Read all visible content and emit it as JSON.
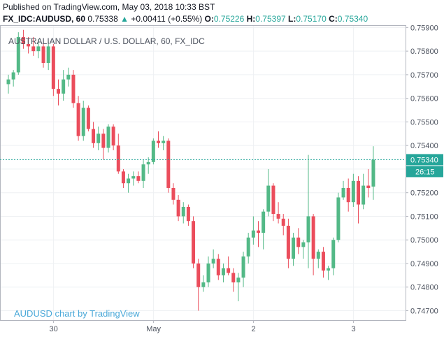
{
  "header": {
    "published": "Published on TradingView.com, May 03, 2018 10:33 BST",
    "symbol": "FX_IDC:AUDUSD, 60",
    "last": "0.75338",
    "change_arrow": "▲",
    "change": "+0.00411 (+0.55%)",
    "open_label": "O:",
    "open": "0.75226",
    "high_label": "H:",
    "high": "0.75397",
    "low_label": "L:",
    "low": "0.75170",
    "close_label": "C:",
    "close": "0.75340"
  },
  "caption": "AUSTRALIAN DOLLAR / U.S. DOLLAR, 60, FX_IDC",
  "watermark": "AUDUSD chart by TradingView",
  "price_tag": "0.75340",
  "countdown": "26:15",
  "colors": {
    "up": "#26a69a",
    "down": "#ef5350",
    "up_candle": "#53b987",
    "down_candle": "#eb4d5c",
    "last_line": "#26a69a"
  },
  "chart_data": {
    "type": "candlestick",
    "y_ticks": [
      "0.75900",
      "0.75800",
      "0.75700",
      "0.75600",
      "0.75500",
      "0.75400",
      "0.75300",
      "0.75200",
      "0.75100",
      "0.75000",
      "0.74900",
      "0.74800",
      "0.74700"
    ],
    "ylim": [
      0.7466,
      0.7591
    ],
    "x_tick_labels": [
      {
        "label": "30",
        "index": 4
      },
      {
        "label": "May",
        "index": 24
      },
      {
        "label": "2",
        "index": 44
      },
      {
        "label": "3",
        "index": 64
      }
    ],
    "last_price": 0.7534,
    "candles": [
      {
        "o": 0.7566,
        "h": 0.757,
        "l": 0.7562,
        "c": 0.7568
      },
      {
        "o": 0.7568,
        "h": 0.7572,
        "l": 0.7565,
        "c": 0.7571
      },
      {
        "o": 0.7571,
        "h": 0.7588,
        "l": 0.757,
        "c": 0.7586
      },
      {
        "o": 0.7586,
        "h": 0.7589,
        "l": 0.7581,
        "c": 0.7583
      },
      {
        "o": 0.7583,
        "h": 0.7586,
        "l": 0.7579,
        "c": 0.7582
      },
      {
        "o": 0.7582,
        "h": 0.7586,
        "l": 0.7578,
        "c": 0.758
      },
      {
        "o": 0.758,
        "h": 0.7585,
        "l": 0.7577,
        "c": 0.7582
      },
      {
        "o": 0.7582,
        "h": 0.7584,
        "l": 0.7573,
        "c": 0.7575
      },
      {
        "o": 0.7575,
        "h": 0.7584,
        "l": 0.7572,
        "c": 0.7582
      },
      {
        "o": 0.7582,
        "h": 0.7583,
        "l": 0.7561,
        "c": 0.7564
      },
      {
        "o": 0.7564,
        "h": 0.7568,
        "l": 0.7557,
        "c": 0.7562
      },
      {
        "o": 0.7562,
        "h": 0.7572,
        "l": 0.7559,
        "c": 0.7568
      },
      {
        "o": 0.7568,
        "h": 0.7573,
        "l": 0.7565,
        "c": 0.757
      },
      {
        "o": 0.757,
        "h": 0.7572,
        "l": 0.7556,
        "c": 0.7558
      },
      {
        "o": 0.7558,
        "h": 0.7561,
        "l": 0.7542,
        "c": 0.7544
      },
      {
        "o": 0.7544,
        "h": 0.7559,
        "l": 0.7542,
        "c": 0.7556
      },
      {
        "o": 0.7556,
        "h": 0.7557,
        "l": 0.7546,
        "c": 0.7547
      },
      {
        "o": 0.7547,
        "h": 0.755,
        "l": 0.7539,
        "c": 0.7541
      },
      {
        "o": 0.7541,
        "h": 0.7548,
        "l": 0.7538,
        "c": 0.7545
      },
      {
        "o": 0.7545,
        "h": 0.7547,
        "l": 0.7534,
        "c": 0.7539
      },
      {
        "o": 0.7539,
        "h": 0.7549,
        "l": 0.7537,
        "c": 0.7548
      },
      {
        "o": 0.7548,
        "h": 0.7549,
        "l": 0.7538,
        "c": 0.754
      },
      {
        "o": 0.754,
        "h": 0.7545,
        "l": 0.7528,
        "c": 0.7529
      },
      {
        "o": 0.7529,
        "h": 0.753,
        "l": 0.7522,
        "c": 0.7524
      },
      {
        "o": 0.7524,
        "h": 0.7528,
        "l": 0.752,
        "c": 0.7526
      },
      {
        "o": 0.7526,
        "h": 0.7529,
        "l": 0.7523,
        "c": 0.7527
      },
      {
        "o": 0.7527,
        "h": 0.7529,
        "l": 0.7524,
        "c": 0.7525
      },
      {
        "o": 0.7525,
        "h": 0.7534,
        "l": 0.7522,
        "c": 0.7532
      },
      {
        "o": 0.7532,
        "h": 0.7535,
        "l": 0.7528,
        "c": 0.7533
      },
      {
        "o": 0.7533,
        "h": 0.7543,
        "l": 0.7532,
        "c": 0.7542
      },
      {
        "o": 0.7542,
        "h": 0.7546,
        "l": 0.7539,
        "c": 0.7541
      },
      {
        "o": 0.7541,
        "h": 0.7544,
        "l": 0.7538,
        "c": 0.7542
      },
      {
        "o": 0.7542,
        "h": 0.7543,
        "l": 0.752,
        "c": 0.7522
      },
      {
        "o": 0.7522,
        "h": 0.7524,
        "l": 0.7515,
        "c": 0.7517
      },
      {
        "o": 0.7517,
        "h": 0.7519,
        "l": 0.7508,
        "c": 0.751
      },
      {
        "o": 0.751,
        "h": 0.7516,
        "l": 0.7507,
        "c": 0.7514
      },
      {
        "o": 0.7514,
        "h": 0.7515,
        "l": 0.7506,
        "c": 0.7508
      },
      {
        "o": 0.7508,
        "h": 0.751,
        "l": 0.7488,
        "c": 0.749
      },
      {
        "o": 0.749,
        "h": 0.7492,
        "l": 0.747,
        "c": 0.748
      },
      {
        "o": 0.748,
        "h": 0.7485,
        "l": 0.7478,
        "c": 0.7482
      },
      {
        "o": 0.7482,
        "h": 0.7493,
        "l": 0.748,
        "c": 0.749
      },
      {
        "o": 0.749,
        "h": 0.7496,
        "l": 0.7488,
        "c": 0.7492
      },
      {
        "o": 0.7492,
        "h": 0.7494,
        "l": 0.7483,
        "c": 0.7485
      },
      {
        "o": 0.7485,
        "h": 0.749,
        "l": 0.7482,
        "c": 0.7488
      },
      {
        "o": 0.7488,
        "h": 0.7493,
        "l": 0.7485,
        "c": 0.7486
      },
      {
        "o": 0.7486,
        "h": 0.7488,
        "l": 0.7478,
        "c": 0.7482
      },
      {
        "o": 0.7482,
        "h": 0.7486,
        "l": 0.7474,
        "c": 0.7484
      },
      {
        "o": 0.7484,
        "h": 0.7495,
        "l": 0.748,
        "c": 0.7493
      },
      {
        "o": 0.7493,
        "h": 0.7503,
        "l": 0.749,
        "c": 0.7501
      },
      {
        "o": 0.7501,
        "h": 0.751,
        "l": 0.7498,
        "c": 0.7504
      },
      {
        "o": 0.7504,
        "h": 0.7508,
        "l": 0.7497,
        "c": 0.7503
      },
      {
        "o": 0.7503,
        "h": 0.7513,
        "l": 0.7496,
        "c": 0.7512
      },
      {
        "o": 0.7512,
        "h": 0.753,
        "l": 0.751,
        "c": 0.7523
      },
      {
        "o": 0.7523,
        "h": 0.7524,
        "l": 0.7508,
        "c": 0.7511
      },
      {
        "o": 0.7511,
        "h": 0.7516,
        "l": 0.7507,
        "c": 0.7509
      },
      {
        "o": 0.7509,
        "h": 0.7511,
        "l": 0.7502,
        "c": 0.7506
      },
      {
        "o": 0.7506,
        "h": 0.7509,
        "l": 0.7488,
        "c": 0.7492
      },
      {
        "o": 0.7492,
        "h": 0.7503,
        "l": 0.7489,
        "c": 0.7501
      },
      {
        "o": 0.7501,
        "h": 0.7505,
        "l": 0.7494,
        "c": 0.7497
      },
      {
        "o": 0.7497,
        "h": 0.75,
        "l": 0.7492,
        "c": 0.7499
      },
      {
        "o": 0.7499,
        "h": 0.7536,
        "l": 0.7488,
        "c": 0.751
      },
      {
        "o": 0.751,
        "h": 0.7511,
        "l": 0.7485,
        "c": 0.7492
      },
      {
        "o": 0.7492,
        "h": 0.7496,
        "l": 0.7488,
        "c": 0.7495
      },
      {
        "o": 0.7495,
        "h": 0.7497,
        "l": 0.7484,
        "c": 0.7487
      },
      {
        "o": 0.7487,
        "h": 0.7489,
        "l": 0.7483,
        "c": 0.7488
      },
      {
        "o": 0.7488,
        "h": 0.7501,
        "l": 0.7485,
        "c": 0.75
      },
      {
        "o": 0.75,
        "h": 0.752,
        "l": 0.7499,
        "c": 0.7518
      },
      {
        "o": 0.7518,
        "h": 0.7525,
        "l": 0.7517,
        "c": 0.7522
      },
      {
        "o": 0.7522,
        "h": 0.7526,
        "l": 0.7512,
        "c": 0.7516
      },
      {
        "o": 0.7516,
        "h": 0.7528,
        "l": 0.7514,
        "c": 0.7525
      },
      {
        "o": 0.7525,
        "h": 0.7527,
        "l": 0.7507,
        "c": 0.7515
      },
      {
        "o": 0.7515,
        "h": 0.7528,
        "l": 0.7513,
        "c": 0.7523
      },
      {
        "o": 0.7523,
        "h": 0.753,
        "l": 0.7518,
        "c": 0.7522
      },
      {
        "o": 0.75226,
        "h": 0.75397,
        "l": 0.7517,
        "c": 0.7534
      }
    ]
  }
}
